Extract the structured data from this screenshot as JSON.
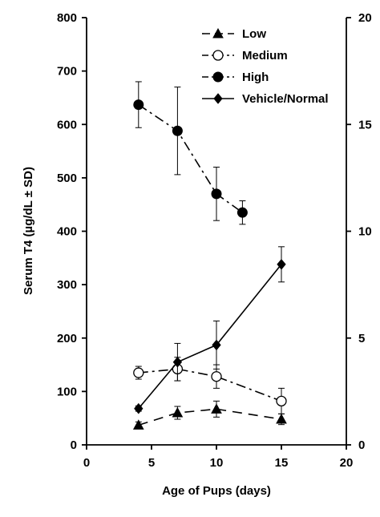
{
  "chart_data": {
    "type": "line",
    "xlabel": "Age of Pups (days)",
    "ylabel": "Serum T4 (µg/dL ± SD)",
    "xlim": [
      0,
      20
    ],
    "ylim": [
      0,
      800
    ],
    "y2lim": [
      0,
      20
    ],
    "x_ticks": [
      "0",
      "5",
      "10",
      "15",
      "20"
    ],
    "y_ticks": [
      "0",
      "100",
      "200",
      "300",
      "400",
      "500",
      "600",
      "700",
      "800"
    ],
    "y2_ticks": [
      "0",
      "5",
      "10",
      "15",
      "20"
    ],
    "legend_position": "top-right",
    "grid": false,
    "series": [
      {
        "name": "Low",
        "marker": "triangle-filled",
        "dash": "long-dash",
        "x": [
          4,
          7,
          10,
          15
        ],
        "y": [
          37,
          60,
          67,
          48
        ],
        "error": [
          6,
          12,
          15,
          10
        ]
      },
      {
        "name": "Medium",
        "marker": "circle-open",
        "dash": "dash-dot",
        "x": [
          4,
          7,
          10,
          15
        ],
        "y": [
          135,
          142,
          128,
          82
        ],
        "error": [
          12,
          22,
          22,
          24
        ]
      },
      {
        "name": "High",
        "marker": "circle-filled",
        "dash": "dash-dot",
        "x": [
          4,
          7,
          10,
          12
        ],
        "y": [
          637,
          588,
          470,
          435
        ],
        "error": [
          43,
          82,
          50,
          22
        ]
      },
      {
        "name": "Vehicle/Normal",
        "marker": "diamond-filled",
        "dash": "solid",
        "x": [
          4,
          7,
          10,
          15
        ],
        "y": [
          68,
          155,
          187,
          338
        ],
        "error": [
          5,
          35,
          45,
          33
        ]
      }
    ]
  }
}
